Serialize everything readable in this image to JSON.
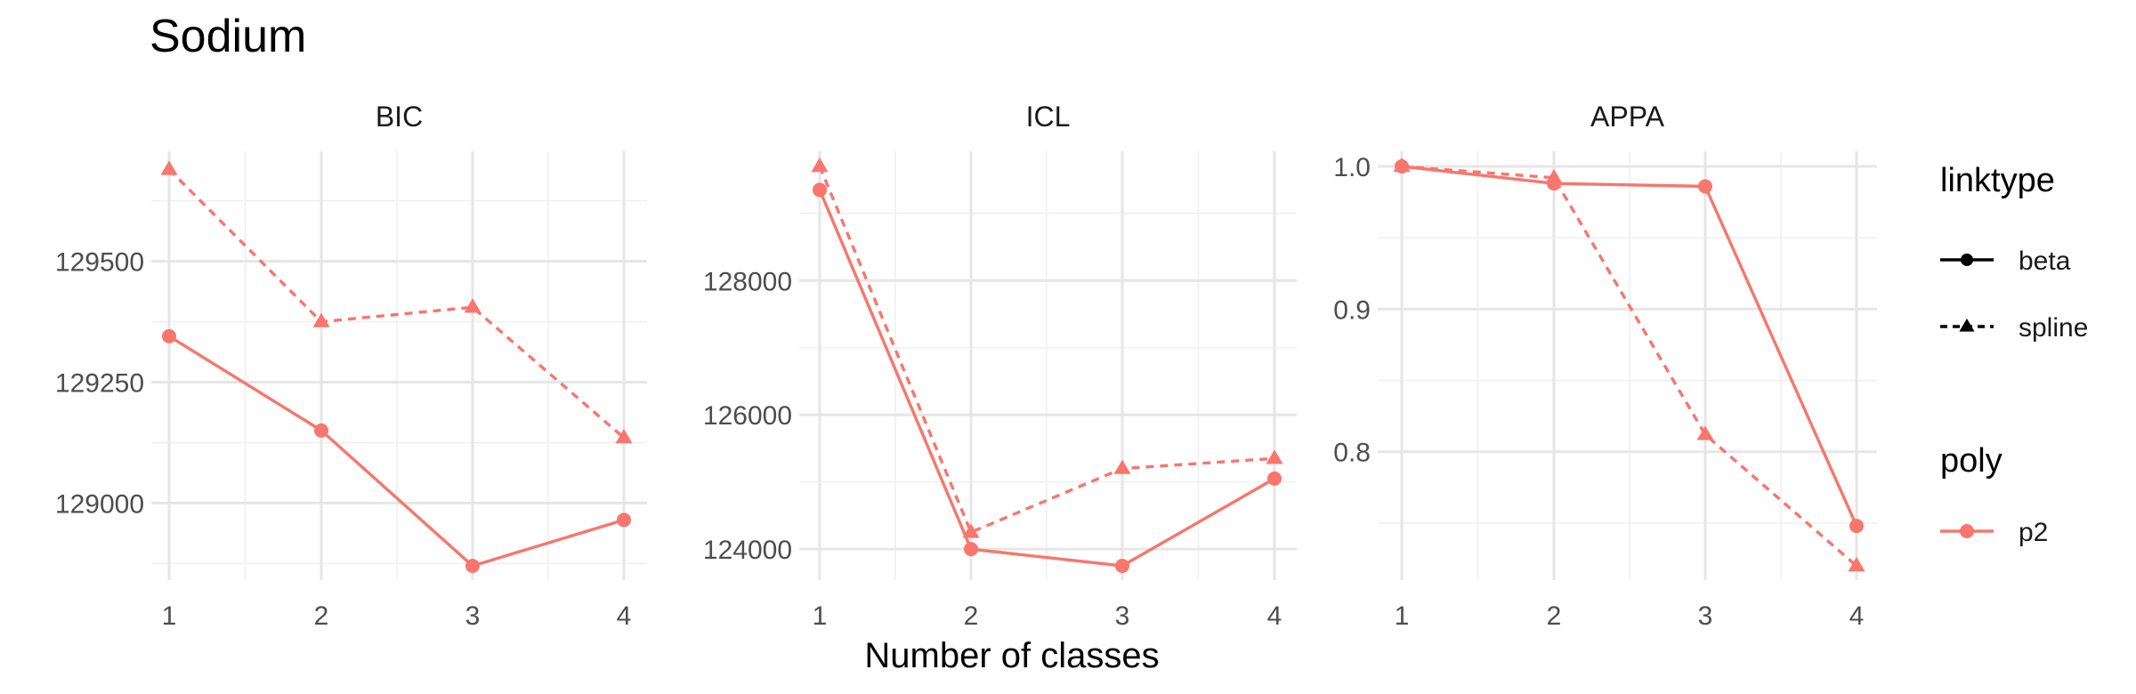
{
  "chart_data": {
    "type": "line",
    "title": "Sodium",
    "xlabel": "Number of classes",
    "x": [
      1,
      2,
      3,
      4
    ],
    "colors": {
      "p2": "#F8766D"
    },
    "legend": {
      "placement": "right",
      "groups": [
        {
          "title": "linktype",
          "entries": [
            {
              "label": "beta",
              "shape": "circle",
              "line": "solid"
            },
            {
              "label": "spline",
              "shape": "triangle",
              "line": "dashed"
            }
          ]
        },
        {
          "title": "poly",
          "entries": [
            {
              "label": "p2",
              "shape": "circle",
              "line": "solid"
            }
          ]
        }
      ]
    },
    "panels": [
      {
        "label": "BIC",
        "ylim": [
          128870,
          129700
        ],
        "yticks": [
          129000,
          129250,
          129500
        ],
        "ytick_labels": [
          "129000",
          "129250",
          "129500"
        ],
        "series": [
          {
            "linktype": "beta",
            "poly": "p2",
            "values": [
              129345,
              129150,
              128870,
              128965
            ]
          },
          {
            "linktype": "spline",
            "poly": "p2",
            "values": [
              129690,
              129375,
              129405,
              129135
            ]
          }
        ]
      },
      {
        "label": "ICL",
        "ylim": [
          123750,
          129700
        ],
        "yticks": [
          124000,
          126000,
          128000
        ],
        "ytick_labels": [
          "124000",
          "126000",
          "128000"
        ],
        "series": [
          {
            "linktype": "beta",
            "poly": "p2",
            "values": [
              129350,
              124000,
              123750,
              125050
            ]
          },
          {
            "linktype": "spline",
            "poly": "p2",
            "values": [
              129700,
              124250,
              125200,
              125350
            ]
          }
        ]
      },
      {
        "label": "APPA",
        "ylim": [
          0.72,
          1.0
        ],
        "yticks": [
          0.8,
          0.9,
          1.0
        ],
        "ytick_labels": [
          "0.8",
          "0.9",
          "1.0"
        ],
        "series": [
          {
            "linktype": "beta",
            "poly": "p2",
            "values": [
              1.0,
              0.988,
              0.986,
              0.748
            ]
          },
          {
            "linktype": "spline",
            "poly": "p2",
            "values": [
              1.0,
              0.992,
              0.812,
              0.72
            ]
          }
        ]
      }
    ]
  }
}
